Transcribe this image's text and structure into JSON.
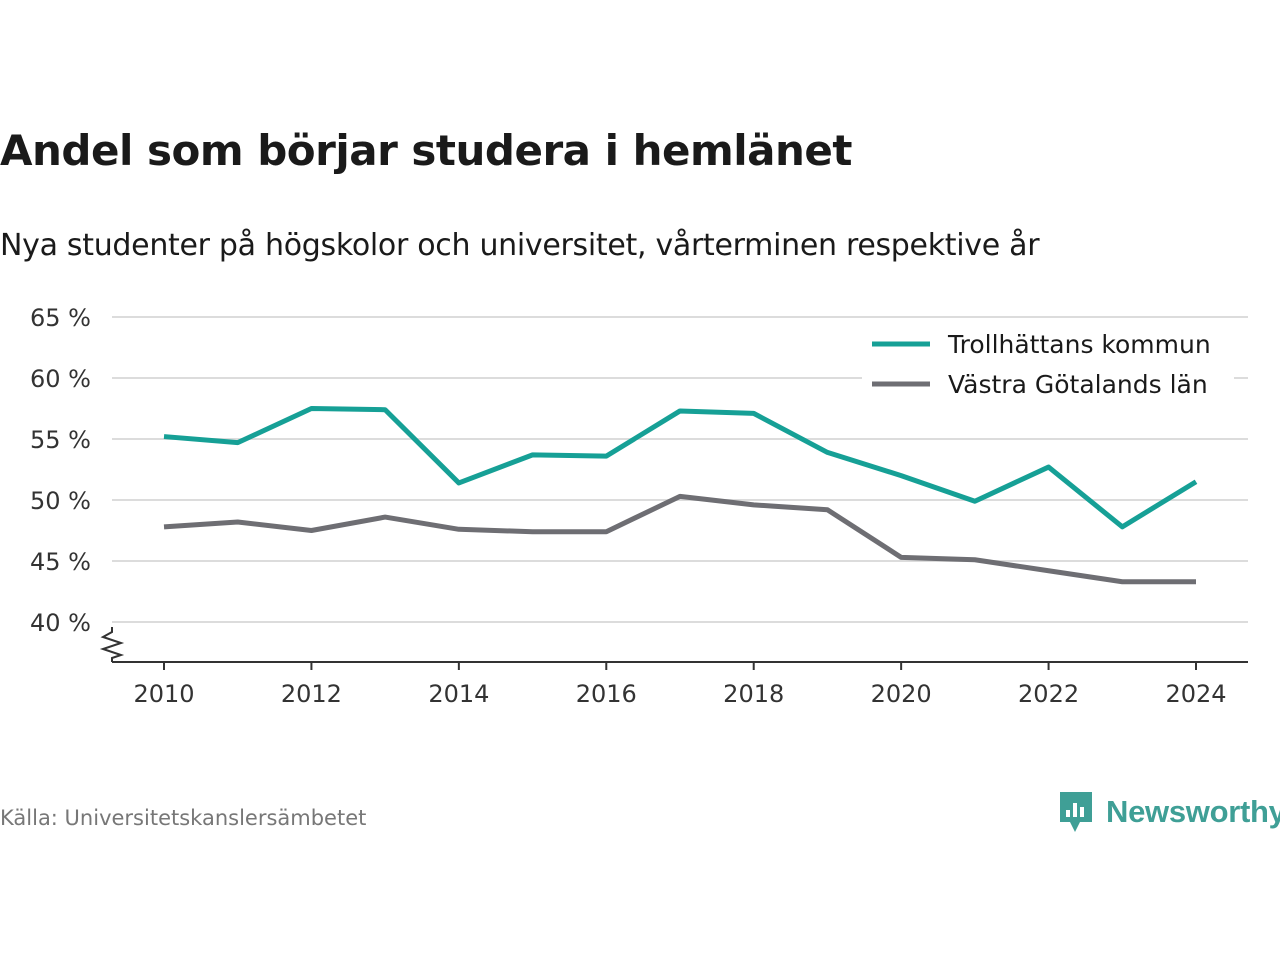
{
  "title": "Andel som börjar studera i hemlänet",
  "subtitle": "Nya studenter på högskolor och universitet, vårterminen respektive år",
  "source": "Källa: Universitetskanslersämbetet",
  "brand": "Newsworthy",
  "colors": {
    "series_1": "#16a096",
    "series_2": "#6e6e73",
    "grid": "#dcdcdc",
    "brand": "#3f9f96"
  },
  "chart_data": {
    "type": "line",
    "x": [
      2010,
      2011,
      2012,
      2013,
      2014,
      2015,
      2016,
      2017,
      2018,
      2019,
      2020,
      2021,
      2022,
      2023,
      2024
    ],
    "series": [
      {
        "name": "Trollhättans kommun",
        "values": [
          55.2,
          54.7,
          57.5,
          57.4,
          51.4,
          53.7,
          53.6,
          57.3,
          57.1,
          53.9,
          52.0,
          49.9,
          52.7,
          47.8,
          51.5
        ]
      },
      {
        "name": "Västra Götalands län",
        "values": [
          47.8,
          48.2,
          47.5,
          48.6,
          47.6,
          47.4,
          47.4,
          50.3,
          49.6,
          49.2,
          45.3,
          45.1,
          44.2,
          43.3,
          43.3
        ]
      }
    ],
    "y_ticks": [
      40,
      45,
      50,
      55,
      60,
      65
    ],
    "y_tick_labels": [
      "40 %",
      "45 %",
      "50 %",
      "55 %",
      "60 %",
      "65 %"
    ],
    "x_ticks": [
      2010,
      2012,
      2014,
      2016,
      2018,
      2020,
      2022,
      2024
    ],
    "x_tick_labels": [
      "2010",
      "2012",
      "2014",
      "2016",
      "2018",
      "2020",
      "2022",
      "2024"
    ],
    "ylim": [
      40,
      65
    ],
    "xlim": [
      2010,
      2024
    ],
    "grid": true,
    "legend": "top-right",
    "axis_break": true
  }
}
